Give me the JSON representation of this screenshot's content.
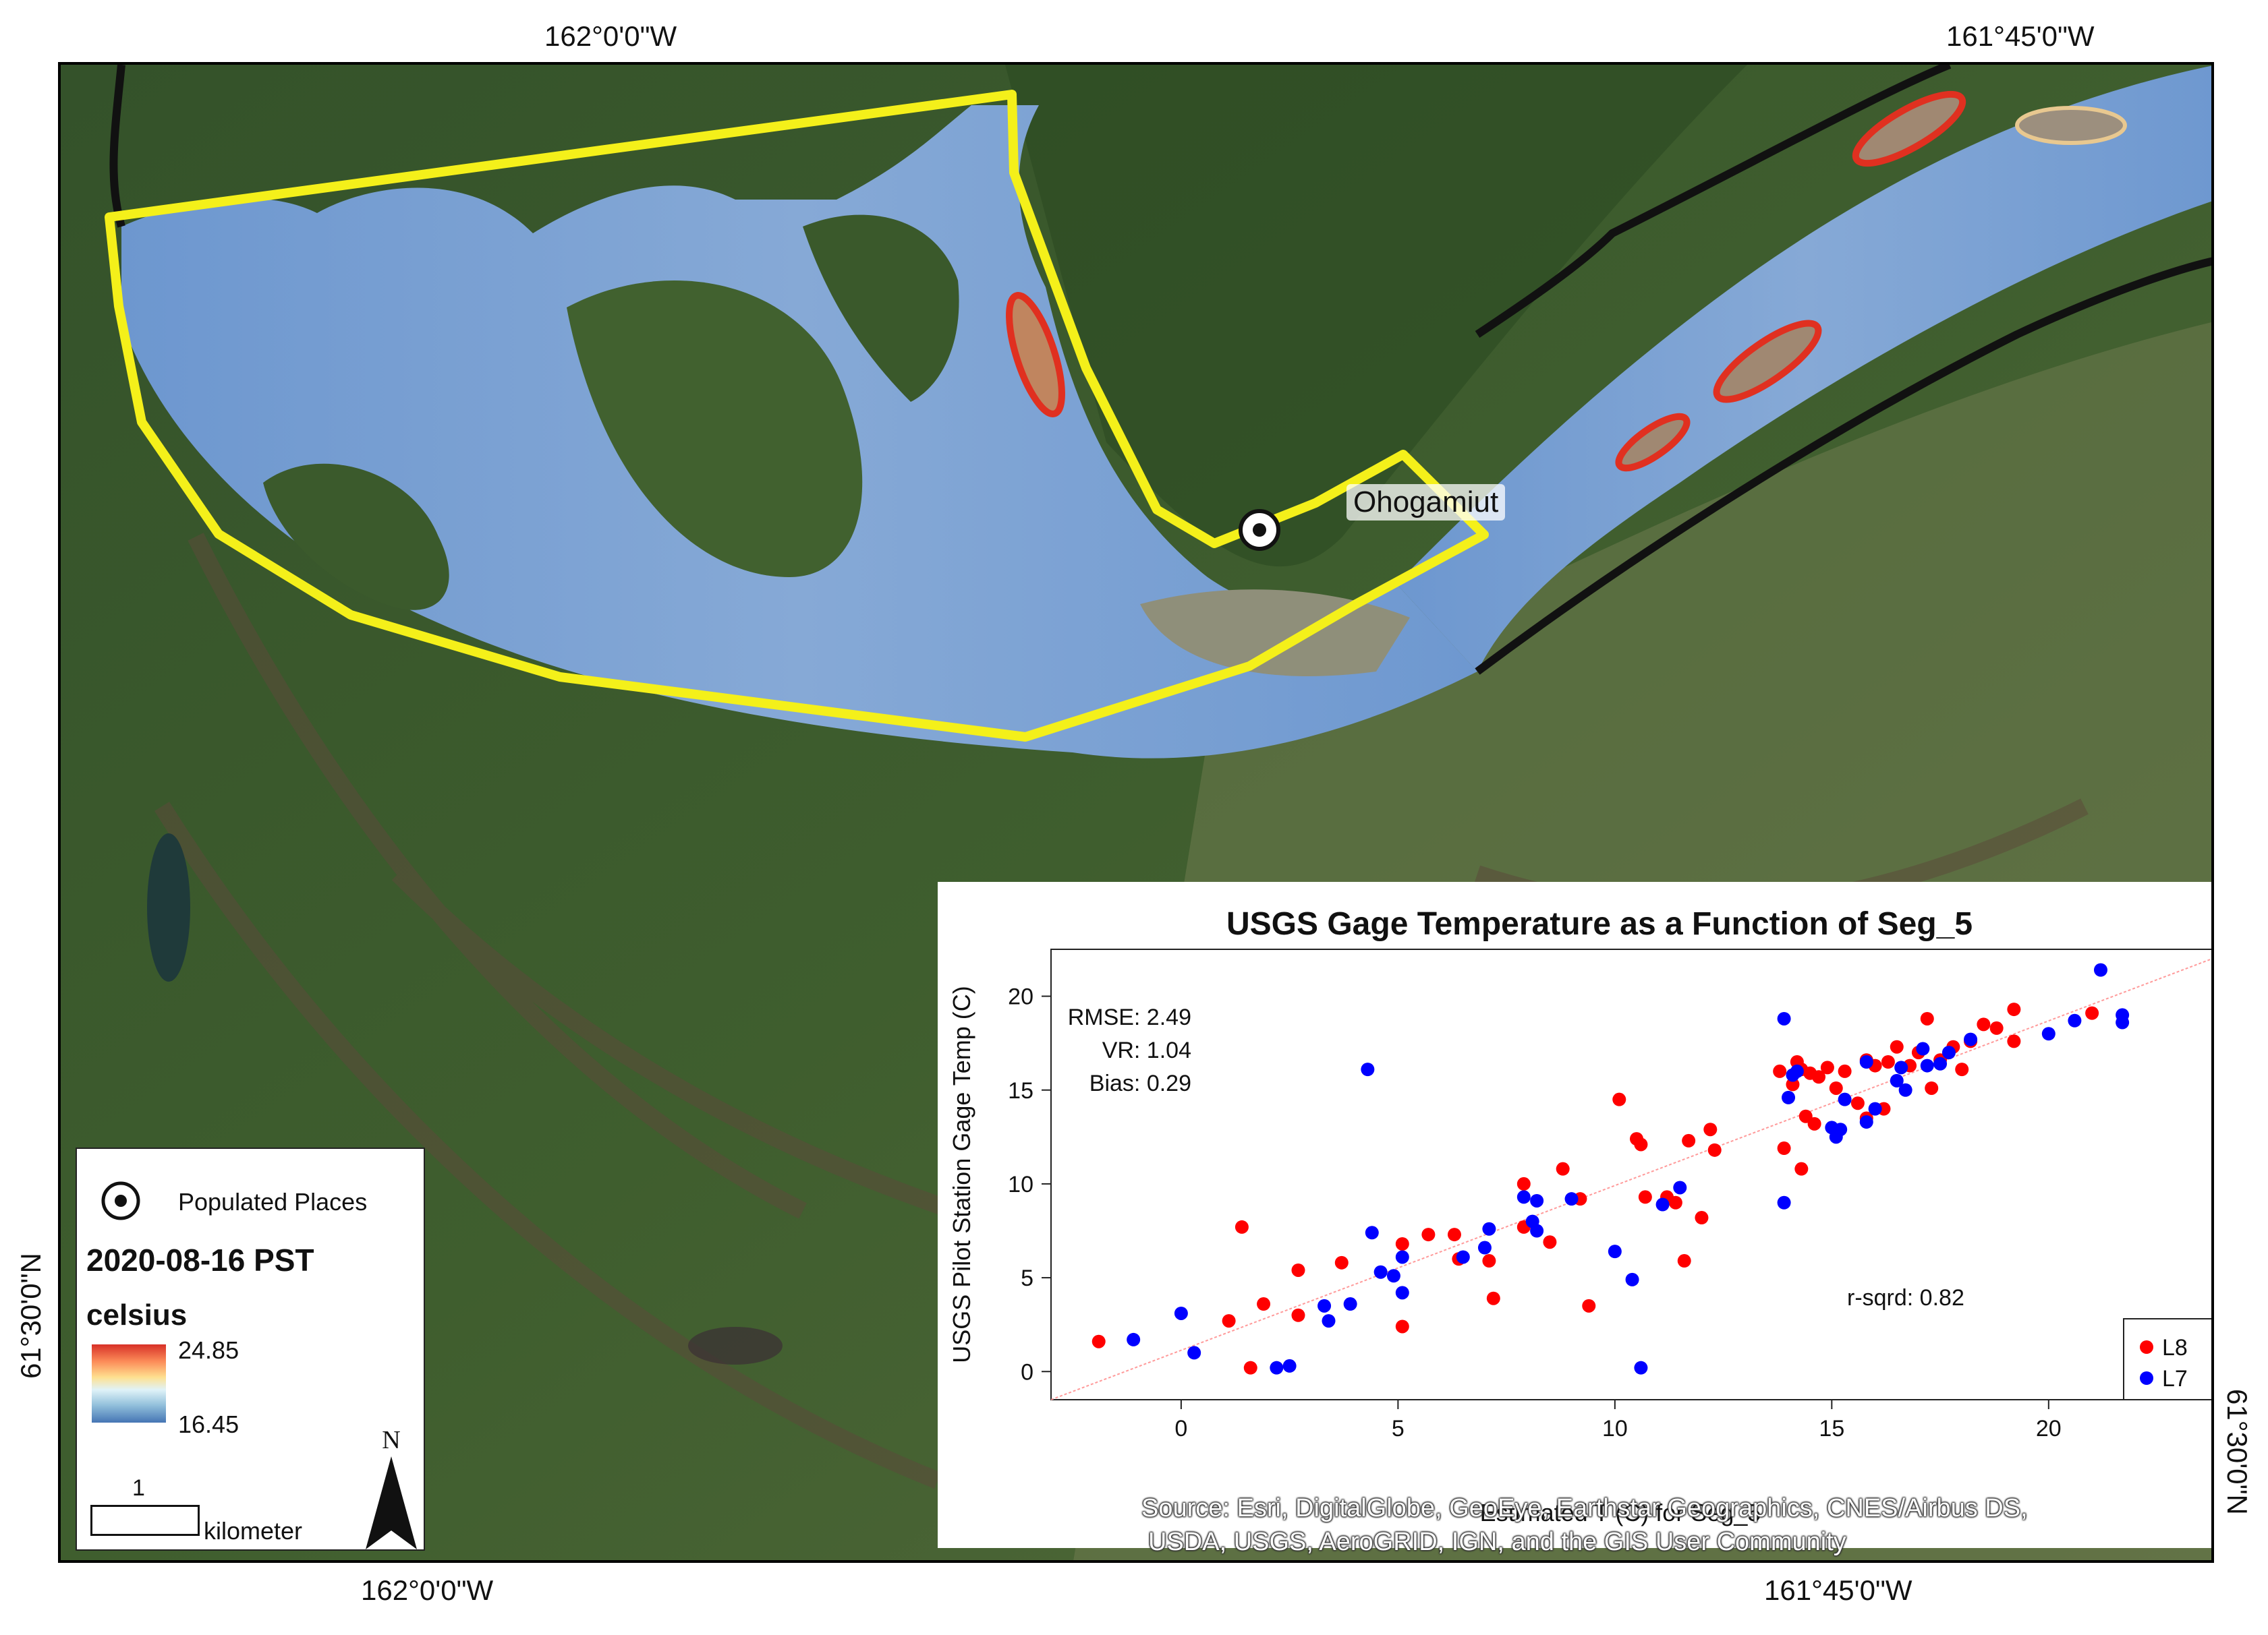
{
  "coords": {
    "top_left": "162°0'0\"W",
    "top_right": "161°45'0\"W",
    "bottom_left": "162°0'0\"W",
    "bottom_right": "161°45'0\"W",
    "left": "61°30'0\"N",
    "right": "61°30'0\"N"
  },
  "place": {
    "name": "Ohogamiut"
  },
  "legend": {
    "populated_places": "Populated Places",
    "date": "2020-08-16 PST",
    "unit": "celsius",
    "max": "24.85",
    "min": "16.45",
    "scale_number": "1",
    "scale_unit": "kilometer",
    "north": "N",
    "ramp_colors": [
      "#d73027",
      "#fc8d59",
      "#fee090",
      "#e0f3f8",
      "#91bfdb",
      "#4575b4"
    ]
  },
  "source": {
    "line1": "Source: Esri, DigitalGlobe, GeoEye, Earthstar Geographics, CNES/Airbus DS,",
    "line2": "USDA, USGS, AeroGRID, IGN, and the GIS User Community"
  },
  "chart_data": {
    "type": "scatter",
    "title": "USGS Gage Temperature as a Function of Seg_5",
    "xlabel": "Estimated T (C) for Seg_5",
    "ylabel": "USGS Pilot Station Gage Temp (C)",
    "xlim": [
      -3,
      24
    ],
    "ylim": [
      -1.5,
      22.5
    ],
    "xticks": [
      0,
      5,
      10,
      15,
      20
    ],
    "yticks": [
      0,
      5,
      10,
      15,
      20
    ],
    "stats": {
      "rmse": "RMSE: 2.49",
      "vr": "VR: 1.04",
      "bias": "Bias: 0.29",
      "rsqrd": "r-sqrd: 0.82"
    },
    "fit_line": {
      "x": [
        -3,
        24
      ],
      "y": [
        -1.5,
        22.2
      ],
      "color": "#ff9a9a"
    },
    "legend_position": "bottom-right",
    "series": [
      {
        "name": "L8",
        "color": "#ff0000",
        "points": [
          [
            -1.9,
            1.6
          ],
          [
            1.1,
            2.7
          ],
          [
            1.4,
            7.7
          ],
          [
            1.6,
            0.2
          ],
          [
            1.9,
            3.6
          ],
          [
            2.7,
            3.0
          ],
          [
            2.7,
            5.4
          ],
          [
            3.7,
            5.8
          ],
          [
            5.1,
            2.4
          ],
          [
            5.1,
            6.8
          ],
          [
            5.7,
            7.3
          ],
          [
            6.3,
            7.3
          ],
          [
            6.4,
            6.0
          ],
          [
            7.1,
            5.9
          ],
          [
            7.2,
            3.9
          ],
          [
            7.9,
            7.7
          ],
          [
            7.9,
            10.0
          ],
          [
            8.5,
            6.9
          ],
          [
            8.8,
            10.8
          ],
          [
            9.2,
            9.2
          ],
          [
            9.4,
            3.5
          ],
          [
            10.1,
            14.5
          ],
          [
            10.5,
            12.4
          ],
          [
            10.6,
            12.1
          ],
          [
            10.7,
            9.3
          ],
          [
            11.2,
            9.3
          ],
          [
            11.4,
            9.0
          ],
          [
            11.6,
            5.9
          ],
          [
            11.7,
            12.3
          ],
          [
            12.0,
            8.2
          ],
          [
            12.2,
            12.9
          ],
          [
            12.3,
            11.8
          ],
          [
            13.8,
            16.0
          ],
          [
            13.9,
            11.9
          ],
          [
            14.1,
            15.3
          ],
          [
            14.2,
            16.5
          ],
          [
            14.3,
            10.8
          ],
          [
            14.3,
            16.1
          ],
          [
            14.4,
            13.6
          ],
          [
            14.5,
            15.9
          ],
          [
            14.6,
            13.2
          ],
          [
            14.7,
            15.7
          ],
          [
            14.9,
            16.2
          ],
          [
            15.1,
            15.1
          ],
          [
            15.3,
            16.0
          ],
          [
            15.6,
            14.3
          ],
          [
            15.8,
            13.5
          ],
          [
            15.8,
            16.6
          ],
          [
            16.0,
            16.3
          ],
          [
            16.2,
            14.0
          ],
          [
            16.3,
            16.5
          ],
          [
            16.5,
            17.3
          ],
          [
            16.8,
            16.3
          ],
          [
            17.0,
            17.0
          ],
          [
            17.2,
            18.8
          ],
          [
            17.3,
            15.1
          ],
          [
            17.5,
            16.6
          ],
          [
            17.8,
            17.3
          ],
          [
            18.0,
            16.1
          ],
          [
            18.2,
            17.6
          ],
          [
            18.5,
            18.5
          ],
          [
            18.8,
            18.3
          ],
          [
            19.2,
            17.6
          ],
          [
            19.2,
            19.3
          ],
          [
            21.0,
            19.1
          ]
        ]
      },
      {
        "name": "L7",
        "color": "#0000ff",
        "points": [
          [
            -1.1,
            1.7
          ],
          [
            0.0,
            3.1
          ],
          [
            0.3,
            1.0
          ],
          [
            2.2,
            0.2
          ],
          [
            2.5,
            0.3
          ],
          [
            3.3,
            3.5
          ],
          [
            3.4,
            2.7
          ],
          [
            3.9,
            3.6
          ],
          [
            4.3,
            16.1
          ],
          [
            4.4,
            7.4
          ],
          [
            4.6,
            5.3
          ],
          [
            4.9,
            5.1
          ],
          [
            5.1,
            6.1
          ],
          [
            5.1,
            4.2
          ],
          [
            6.5,
            6.1
          ],
          [
            7.0,
            6.6
          ],
          [
            7.1,
            7.6
          ],
          [
            7.9,
            9.3
          ],
          [
            8.1,
            8.0
          ],
          [
            8.2,
            7.5
          ],
          [
            8.2,
            9.1
          ],
          [
            9.0,
            9.2
          ],
          [
            10.0,
            6.4
          ],
          [
            10.4,
            4.9
          ],
          [
            10.6,
            0.2
          ],
          [
            11.1,
            8.9
          ],
          [
            11.5,
            9.8
          ],
          [
            13.9,
            18.8
          ],
          [
            13.9,
            9.0
          ],
          [
            14.0,
            14.6
          ],
          [
            14.1,
            15.8
          ],
          [
            14.2,
            16.0
          ],
          [
            15.0,
            13.0
          ],
          [
            15.1,
            12.5
          ],
          [
            15.2,
            12.9
          ],
          [
            15.3,
            14.5
          ],
          [
            15.8,
            16.5
          ],
          [
            15.8,
            13.3
          ],
          [
            16.0,
            14.0
          ],
          [
            16.5,
            15.5
          ],
          [
            16.6,
            16.2
          ],
          [
            16.7,
            15.0
          ],
          [
            17.1,
            17.2
          ],
          [
            17.2,
            16.3
          ],
          [
            17.5,
            16.4
          ],
          [
            17.7,
            17.0
          ],
          [
            18.2,
            17.7
          ],
          [
            20.0,
            18.0
          ],
          [
            20.6,
            18.7
          ],
          [
            21.2,
            21.4
          ],
          [
            21.7,
            18.6
          ],
          [
            21.7,
            19.0
          ]
        ]
      }
    ]
  }
}
